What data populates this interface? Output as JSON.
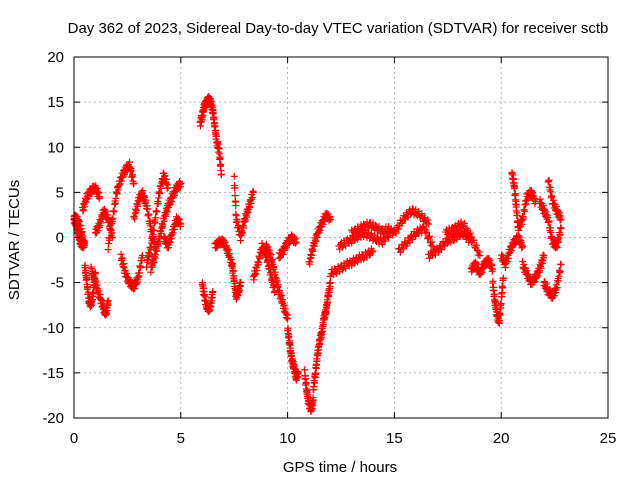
{
  "chart_data": {
    "type": "scatter",
    "title": "Day 362 of 2023, Sidereal Day-to-day VTEC variation (SDTVAR) for receiver sctb",
    "xlabel": "GPS time / hours",
    "ylabel": "SDTVAR / TECUs",
    "xlim": [
      0,
      25
    ],
    "ylim": [
      -20,
      20
    ],
    "xticks": [
      0,
      5,
      10,
      15,
      20,
      25
    ],
    "yticks": [
      -20,
      -15,
      -10,
      -5,
      0,
      5,
      10,
      15,
      20
    ],
    "xtick_labels": [
      "0",
      "5",
      "10",
      "15",
      "20",
      "25"
    ],
    "ytick_labels": [
      "-20",
      "-15",
      "-10",
      "-5",
      "0",
      "5",
      "10",
      "15",
      "20"
    ],
    "grid": true,
    "marker": "+",
    "color": "#ff0000",
    "segments": [
      {
        "x": [
          0.0,
          0.1,
          0.2,
          0.3,
          0.4,
          0.5
        ],
        "y": [
          2.0,
          1.5,
          0.5,
          -0.5,
          -1.0,
          -0.5
        ]
      },
      {
        "x": [
          0.0,
          0.15,
          0.3,
          0.45
        ],
        "y": [
          2.3,
          2.0,
          1.2,
          -0.5
        ]
      },
      {
        "x": [
          0.5,
          0.6,
          0.7,
          0.8,
          0.9,
          1.0
        ],
        "y": [
          -3.0,
          -5.0,
          -7.0,
          -7.5,
          -6.0,
          -4.0
        ]
      },
      {
        "x": [
          0.4,
          0.6,
          0.8,
          1.0,
          1.2
        ],
        "y": [
          3.0,
          4.5,
          5.2,
          5.5,
          4.5
        ]
      },
      {
        "x": [
          0.8,
          1.0,
          1.2,
          1.4,
          1.5,
          1.6
        ],
        "y": [
          -3.5,
          -5.0,
          -6.5,
          -8.0,
          -8.5,
          -7.0
        ]
      },
      {
        "x": [
          1.0,
          1.2,
          1.4,
          1.6,
          1.8
        ],
        "y": [
          0.5,
          1.5,
          3.0,
          2.0,
          0.0
        ]
      },
      {
        "x": [
          1.6,
          1.8,
          2.0,
          2.2,
          2.4,
          2.6,
          2.8
        ],
        "y": [
          -1.0,
          2.0,
          5.0,
          6.5,
          7.5,
          8.0,
          6.0
        ]
      },
      {
        "x": [
          2.2,
          2.4,
          2.6,
          2.8,
          3.0,
          3.2
        ],
        "y": [
          -2.0,
          -4.0,
          -5.0,
          -5.5,
          -4.5,
          -2.0
        ]
      },
      {
        "x": [
          2.8,
          3.0,
          3.2,
          3.4,
          3.6,
          3.8
        ],
        "y": [
          2.0,
          4.0,
          5.0,
          3.5,
          1.0,
          -1.0
        ]
      },
      {
        "x": [
          3.4,
          3.6,
          3.8,
          4.0,
          4.2,
          4.4
        ],
        "y": [
          -3.0,
          -1.0,
          2.0,
          5.0,
          7.0,
          5.5
        ]
      },
      {
        "x": [
          3.6,
          3.8,
          4.0,
          4.2,
          4.4,
          4.6,
          4.8,
          5.0
        ],
        "y": [
          -3.5,
          -2.0,
          0.0,
          2.0,
          3.5,
          4.5,
          5.5,
          6.0
        ]
      },
      {
        "x": [
          4.2,
          4.4,
          4.6,
          4.8,
          5.0
        ],
        "y": [
          0.0,
          -1.0,
          0.5,
          2.0,
          1.5
        ]
      },
      {
        "x": [
          5.9,
          6.0,
          6.1,
          6.2,
          6.3,
          6.4,
          6.5,
          6.6,
          6.7,
          6.8,
          6.9
        ],
        "y": [
          12.5,
          13.5,
          14.5,
          15.0,
          15.3,
          15.0,
          14.0,
          12.0,
          10.5,
          9.5,
          7.0
        ]
      },
      {
        "x": [
          6.0,
          6.1,
          6.2,
          6.3,
          6.4,
          6.5
        ],
        "y": [
          -5.0,
          -6.5,
          -7.5,
          -8.0,
          -7.5,
          -6.0
        ]
      },
      {
        "x": [
          6.6,
          6.8,
          7.0,
          7.2,
          7.4
        ],
        "y": [
          -1.0,
          -0.5,
          -0.5,
          -1.5,
          -3.0
        ]
      },
      {
        "x": [
          7.4,
          7.5,
          7.6,
          7.7,
          7.8
        ],
        "y": [
          -3.0,
          -5.0,
          -6.5,
          -6.0,
          -5.0
        ]
      },
      {
        "x": [
          7.5,
          7.6,
          7.8,
          8.0,
          8.2,
          8.4
        ],
        "y": [
          6.5,
          2.0,
          0.0,
          2.0,
          3.5,
          5.0
        ]
      },
      {
        "x": [
          8.4,
          8.6,
          8.8,
          9.0,
          9.2,
          9.4
        ],
        "y": [
          -4.5,
          -3.0,
          -1.0,
          -2.0,
          -4.0,
          -6.0
        ]
      },
      {
        "x": [
          9.0,
          9.2,
          9.4,
          9.6,
          9.8,
          10.0
        ],
        "y": [
          -1.0,
          -2.0,
          -4.0,
          -6.0,
          -7.5,
          -9.0
        ]
      },
      {
        "x": [
          10.0,
          10.1,
          10.2,
          10.3,
          10.4,
          10.5
        ],
        "y": [
          -10.0,
          -12.0,
          -13.5,
          -14.5,
          -15.5,
          -15.0
        ]
      },
      {
        "x": [
          9.6,
          9.8,
          10.0,
          10.2,
          10.4
        ],
        "y": [
          -2.0,
          -1.5,
          -0.5,
          0.0,
          -0.5
        ]
      },
      {
        "x": [
          10.8,
          10.9,
          11.0,
          11.1,
          11.2
        ],
        "y": [
          -15.0,
          -17.0,
          -18.5,
          -19.0,
          -18.0
        ]
      },
      {
        "x": [
          11.2,
          11.3,
          11.4,
          11.5,
          11.6,
          11.7,
          11.8,
          11.9,
          12.0
        ],
        "y": [
          -17.0,
          -15.0,
          -13.0,
          -11.5,
          -10.5,
          -9.0,
          -8.0,
          -6.5,
          -5.0
        ]
      },
      {
        "x": [
          11.0,
          11.2,
          11.4,
          11.6,
          11.8,
          12.0
        ],
        "y": [
          -3.0,
          -1.0,
          0.5,
          1.5,
          2.5,
          2.0
        ]
      },
      {
        "x": [
          12.0,
          12.4,
          12.8,
          13.2,
          13.6,
          14.0
        ],
        "y": [
          -4.0,
          -3.5,
          -3.0,
          -2.5,
          -2.0,
          -1.5
        ]
      },
      {
        "x": [
          12.4,
          12.8,
          13.2,
          13.6,
          14.0,
          14.4,
          14.8
        ],
        "y": [
          -1.0,
          -0.5,
          0.0,
          0.5,
          0.0,
          -0.5,
          0.5
        ]
      },
      {
        "x": [
          13.0,
          13.4,
          13.8,
          14.2,
          14.6
        ],
        "y": [
          0.5,
          1.0,
          1.5,
          1.0,
          0.5
        ]
      },
      {
        "x": [
          14.6,
          15.0,
          15.4,
          15.8,
          16.2,
          16.6
        ],
        "y": [
          1.0,
          0.5,
          2.0,
          3.0,
          2.5,
          1.5
        ]
      },
      {
        "x": [
          15.2,
          15.6,
          16.0,
          16.4,
          16.8
        ],
        "y": [
          -1.5,
          -0.5,
          0.5,
          1.0,
          -1.0
        ]
      },
      {
        "x": [
          16.6,
          17.0,
          17.4,
          17.8,
          18.2,
          18.6
        ],
        "y": [
          -2.0,
          -1.5,
          -0.5,
          0.0,
          0.5,
          -0.5
        ]
      },
      {
        "x": [
          17.4,
          17.8,
          18.2,
          18.6,
          19.0
        ],
        "y": [
          0.5,
          1.0,
          1.5,
          0.0,
          -2.0
        ]
      },
      {
        "x": [
          18.6,
          18.8,
          19.0,
          19.2,
          19.4,
          19.6
        ],
        "y": [
          -3.5,
          -3.0,
          -4.0,
          -3.0,
          -2.5,
          -3.5
        ]
      },
      {
        "x": [
          19.6,
          19.7,
          19.8,
          19.9,
          20.0,
          20.1
        ],
        "y": [
          -5.0,
          -7.0,
          -8.5,
          -9.5,
          -7.0,
          -4.5
        ]
      },
      {
        "x": [
          20.0,
          20.2,
          20.4,
          20.6,
          20.8,
          21.0
        ],
        "y": [
          -2.0,
          -3.0,
          -1.5,
          -0.5,
          0.0,
          -1.0
        ]
      },
      {
        "x": [
          20.5,
          20.6,
          20.7,
          20.8,
          21.0,
          21.2,
          21.4,
          21.6
        ],
        "y": [
          7.0,
          6.0,
          3.5,
          1.0,
          2.0,
          4.5,
          5.0,
          4.0
        ]
      },
      {
        "x": [
          21.0,
          21.2,
          21.4,
          21.6,
          21.8,
          22.0
        ],
        "y": [
          -3.0,
          -4.0,
          -5.0,
          -4.5,
          -3.5,
          -2.0
        ]
      },
      {
        "x": [
          21.8,
          22.0,
          22.2,
          22.4,
          22.6,
          22.8
        ],
        "y": [
          4.0,
          3.0,
          2.0,
          -0.5,
          -1.0,
          1.0
        ]
      },
      {
        "x": [
          22.0,
          22.2,
          22.4,
          22.6,
          22.8
        ],
        "y": [
          -5.0,
          -6.0,
          -6.5,
          -5.5,
          -3.0
        ]
      },
      {
        "x": [
          22.2,
          22.4,
          22.6,
          22.8
        ],
        "y": [
          6.5,
          4.0,
          3.0,
          2.0
        ]
      }
    ]
  }
}
